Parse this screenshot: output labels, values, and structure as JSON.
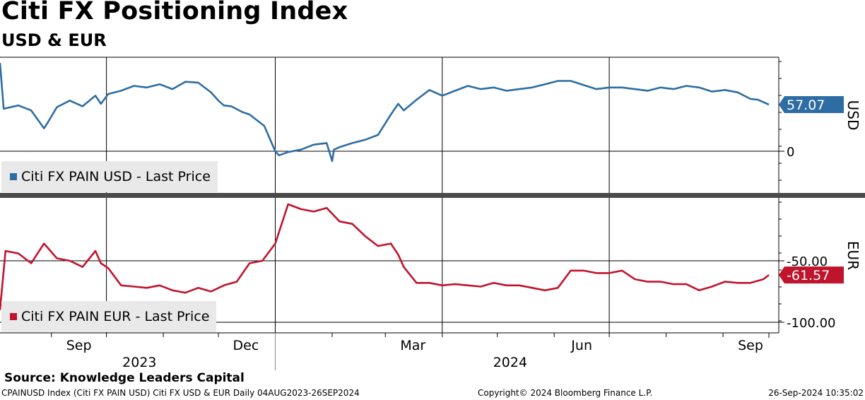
{
  "title": "Citi FX Positioning Index",
  "subtitle": "USD & EUR",
  "source": "Source: Knowledge Leaders Capital",
  "footer": {
    "left": "CPAINUSD Index (Citi FX PAIN USD) Citi FX USD & EUR  Daily 04AUG2023-26SEP2024",
    "mid": "Copyright© 2024 Bloomberg Finance L.P.",
    "right": "26-Sep-2024 10:35:02"
  },
  "colors": {
    "usd": "#2e6da4",
    "eur": "#c0142d"
  },
  "chart_data": [
    {
      "type": "line",
      "panel": "top",
      "axis_label": "USD",
      "ylim": [
        -20,
        120
      ],
      "y_ticks": [
        {
          "value": 0,
          "label": "0"
        }
      ],
      "last_value_label": "57.07",
      "legend": "Citi FX PAIN USD - Last Price",
      "series": [
        {
          "name": "Citi FX PAIN USD - Last Price",
          "x": [
            "2023-08-04",
            "2023-08-06",
            "2023-08-14",
            "2023-08-21",
            "2023-08-28",
            "2023-08-30",
            "2023-09-04",
            "2023-09-11",
            "2023-09-18",
            "2023-09-25",
            "2023-09-28",
            "2023-10-02",
            "2023-10-09",
            "2023-10-16",
            "2023-10-23",
            "2023-10-30",
            "2023-11-06",
            "2023-11-13",
            "2023-11-20",
            "2023-11-27",
            "2023-12-01",
            "2023-12-04",
            "2023-12-08",
            "2023-12-14",
            "2023-12-18",
            "2023-12-26",
            "2024-01-01",
            "2024-01-03",
            "2024-01-08",
            "2024-01-15",
            "2024-01-22",
            "2024-01-29",
            "2024-02-01",
            "2024-02-02",
            "2024-02-05",
            "2024-02-12",
            "2024-02-19",
            "2024-02-26",
            "2024-03-04",
            "2024-03-08",
            "2024-03-11",
            "2024-03-18",
            "2024-03-25",
            "2024-04-01",
            "2024-04-08",
            "2024-04-15",
            "2024-04-22",
            "2024-04-29",
            "2024-05-06",
            "2024-05-13",
            "2024-05-20",
            "2024-05-27",
            "2024-06-03",
            "2024-06-10",
            "2024-06-17",
            "2024-06-24",
            "2024-07-01",
            "2024-07-08",
            "2024-07-15",
            "2024-07-22",
            "2024-07-29",
            "2024-08-05",
            "2024-08-12",
            "2024-08-19",
            "2024-08-26",
            "2024-09-02",
            "2024-09-09",
            "2024-09-16",
            "2024-09-20",
            "2024-09-26"
          ],
          "values": [
            108,
            52,
            56,
            50,
            28,
            35,
            54,
            62,
            55,
            68,
            58,
            70,
            74,
            80,
            78,
            82,
            76,
            85,
            84,
            72,
            62,
            56,
            55,
            48,
            45,
            31,
            0,
            -5,
            -1,
            2,
            8,
            10,
            -12,
            2,
            5,
            10,
            14,
            20,
            45,
            58,
            50,
            63,
            75,
            68,
            74,
            80,
            76,
            78,
            74,
            76,
            78,
            82,
            86,
            86,
            81,
            76,
            78,
            78,
            76,
            74,
            78,
            76,
            80,
            78,
            73,
            75,
            72,
            64,
            63,
            57.07
          ]
        }
      ]
    },
    {
      "type": "line",
      "panel": "bottom",
      "axis_label": "EUR",
      "ylim": [
        -110,
        15
      ],
      "y_ticks": [
        {
          "value": -50,
          "label": "-50.00"
        },
        {
          "value": -100,
          "label": "-100.00"
        }
      ],
      "last_value_label": "-61.57",
      "legend": "Citi FX PAIN EUR - Last Price",
      "series": [
        {
          "name": "Citi FX PAIN EUR - Last Price",
          "x": [
            "2023-08-04",
            "2023-08-07",
            "2023-08-14",
            "2023-08-21",
            "2023-08-28",
            "2023-09-04",
            "2023-09-11",
            "2023-09-18",
            "2023-09-25",
            "2023-09-28",
            "2023-10-02",
            "2023-10-09",
            "2023-10-16",
            "2023-10-23",
            "2023-10-30",
            "2023-11-06",
            "2023-11-13",
            "2023-11-20",
            "2023-11-27",
            "2023-12-04",
            "2023-12-11",
            "2023-12-18",
            "2023-12-25",
            "2024-01-01",
            "2024-01-08",
            "2024-01-15",
            "2024-01-22",
            "2024-01-29",
            "2024-02-05",
            "2024-02-12",
            "2024-02-19",
            "2024-02-26",
            "2024-03-04",
            "2024-03-08",
            "2024-03-11",
            "2024-03-18",
            "2024-03-25",
            "2024-04-01",
            "2024-04-08",
            "2024-04-15",
            "2024-04-22",
            "2024-04-29",
            "2024-05-06",
            "2024-05-13",
            "2024-05-20",
            "2024-05-27",
            "2024-06-03",
            "2024-06-10",
            "2024-06-17",
            "2024-06-24",
            "2024-07-01",
            "2024-07-08",
            "2024-07-15",
            "2024-07-22",
            "2024-07-29",
            "2024-08-05",
            "2024-08-12",
            "2024-08-19",
            "2024-08-26",
            "2024-09-02",
            "2024-09-09",
            "2024-09-16",
            "2024-09-23",
            "2024-09-26"
          ],
          "values": [
            -90,
            -42,
            -44,
            -52,
            -36,
            -48,
            -50,
            -55,
            -42,
            -52,
            -56,
            -70,
            -71,
            -72,
            -70,
            -74,
            -76,
            -72,
            -75,
            -70,
            -67,
            -52,
            -50,
            -36,
            -4,
            -8,
            -10,
            -7,
            -18,
            -20,
            -30,
            -38,
            -36,
            -45,
            -55,
            -68,
            -68,
            -70,
            -69,
            -70,
            -71,
            -68,
            -70,
            -70,
            -72,
            -74,
            -72,
            -58,
            -58,
            -60,
            -60,
            -58,
            -65,
            -67,
            -67,
            -69,
            -69,
            -74,
            -71,
            -67,
            -68,
            -68,
            -65,
            -61.57
          ]
        }
      ]
    }
  ],
  "x_axis": {
    "start": "2023-08-04",
    "end": "2024-09-26",
    "month_labels": [
      {
        "label": "Sep",
        "date": "2023-09-16"
      },
      {
        "label": "Dec",
        "date": "2023-12-16"
      },
      {
        "label": "Mar",
        "date": "2024-03-16"
      },
      {
        "label": "Jun",
        "date": "2024-06-16"
      },
      {
        "label": "Sep",
        "date": "2024-09-16"
      }
    ],
    "year_labels": [
      {
        "label": "2023",
        "date": "2023-10-19"
      },
      {
        "label": "2024",
        "date": "2024-05-08"
      }
    ],
    "gridline_dates": [
      "2023-10-01",
      "2024-01-01",
      "2024-04-01",
      "2024-07-01"
    ],
    "tick_dates": [
      "2023-08-01",
      "2023-09-01",
      "2023-10-01",
      "2023-11-01",
      "2023-12-01",
      "2024-01-01",
      "2024-02-01",
      "2024-03-01",
      "2024-04-01",
      "2024-05-01",
      "2024-06-01",
      "2024-07-01",
      "2024-08-01",
      "2024-09-01"
    ],
    "year_divider": "2024-01-01"
  }
}
